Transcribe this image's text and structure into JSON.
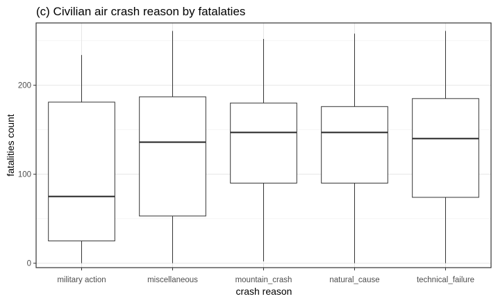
{
  "chart_data": {
    "type": "box",
    "title": "(c) Civilian air crash reason by fatalaties",
    "xlabel": "crash reason",
    "ylabel": "fatalities count",
    "ylim": [
      -5,
      270
    ],
    "yticks": [
      0,
      100,
      200
    ],
    "grid": true,
    "categories": [
      "military action",
      "miscellaneous",
      "mountain_crash",
      "natural_cause",
      "technical_failure"
    ],
    "boxes": [
      {
        "min": 0,
        "q1": 25,
        "median": 75,
        "q3": 181,
        "max": 234
      },
      {
        "min": 0,
        "q1": 53,
        "median": 136,
        "q3": 187,
        "max": 261
      },
      {
        "min": 2,
        "q1": 90,
        "median": 147,
        "q3": 180,
        "max": 252
      },
      {
        "min": 0,
        "q1": 90,
        "median": 147,
        "q3": 176,
        "max": 258
      },
      {
        "min": 0,
        "q1": 74,
        "median": 140,
        "q3": 185,
        "max": 261
      }
    ]
  }
}
